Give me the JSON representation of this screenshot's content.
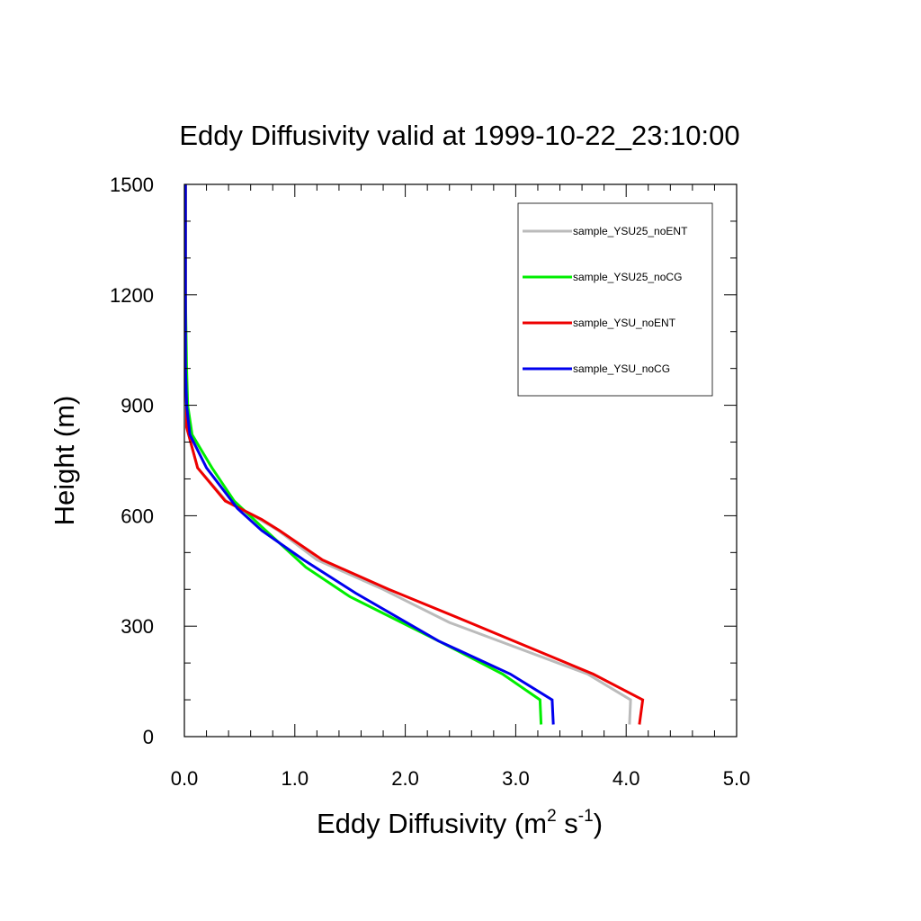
{
  "chart_data": {
    "type": "line",
    "title": "Eddy Diffusivity valid at 1999-10-22_23:10:00",
    "xlabel": {
      "base": "Eddy Diffusivity (m",
      "sup1": "2",
      "mid": " s",
      "sup2": "-1",
      "end": ")"
    },
    "ylabel": "Height (m)",
    "xlim": [
      0,
      5
    ],
    "ylim": [
      0,
      1500
    ],
    "xticks": [
      0,
      1,
      2,
      3,
      4,
      5
    ],
    "xtick_labels": [
      "0.0",
      "1.0",
      "2.0",
      "3.0",
      "4.0",
      "5.0"
    ],
    "yticks": [
      0,
      300,
      600,
      900,
      1200,
      1500
    ],
    "ytick_labels": [
      "0",
      "300",
      "600",
      "900",
      "1200",
      "1500"
    ],
    "grid": false,
    "legend_position": "top-right",
    "series": [
      {
        "name": "sample_YSU25_noENT",
        "color": "#bbbbbb",
        "x": [
          4.03,
          4.04,
          3.65,
          2.4,
          1.8,
          1.2,
          0.85,
          0.68,
          0.38,
          0.12,
          0.03,
          0.02,
          0.01,
          0.01,
          0.01,
          0.01
        ],
        "y": [
          33,
          100,
          170,
          310,
          400,
          480,
          560,
          590,
          640,
          730,
          830,
          900,
          1000,
          1200,
          1350,
          1500
        ]
      },
      {
        "name": "sample_YSU25_noCG",
        "color": "#00ee00",
        "x": [
          3.23,
          3.22,
          2.88,
          2.3,
          1.9,
          1.5,
          1.1,
          0.7,
          0.45,
          0.25,
          0.07,
          0.03,
          0.02,
          0.01,
          0.01
        ],
        "y": [
          33,
          100,
          170,
          260,
          320,
          380,
          460,
          570,
          640,
          730,
          820,
          900,
          1000,
          1200,
          1500
        ]
      },
      {
        "name": "sample_YSU_noENT",
        "color": "#ee0000",
        "x": [
          4.12,
          4.15,
          3.7,
          2.5,
          1.85,
          1.25,
          0.86,
          0.7,
          0.37,
          0.12,
          0.02,
          0.02,
          0.01,
          0.01,
          0.01
        ],
        "y": [
          33,
          100,
          170,
          320,
          400,
          480,
          560,
          590,
          640,
          730,
          840,
          900,
          1000,
          1200,
          1500
        ]
      },
      {
        "name": "sample_YSU_noCG",
        "color": "#0000ee",
        "x": [
          3.34,
          3.33,
          2.95,
          2.3,
          1.55,
          1.08,
          0.7,
          0.48,
          0.2,
          0.05,
          0.02,
          0.01,
          0.01,
          0.01
        ],
        "y": [
          33,
          100,
          170,
          260,
          390,
          480,
          560,
          620,
          730,
          820,
          900,
          1000,
          1200,
          1500
        ]
      }
    ]
  }
}
